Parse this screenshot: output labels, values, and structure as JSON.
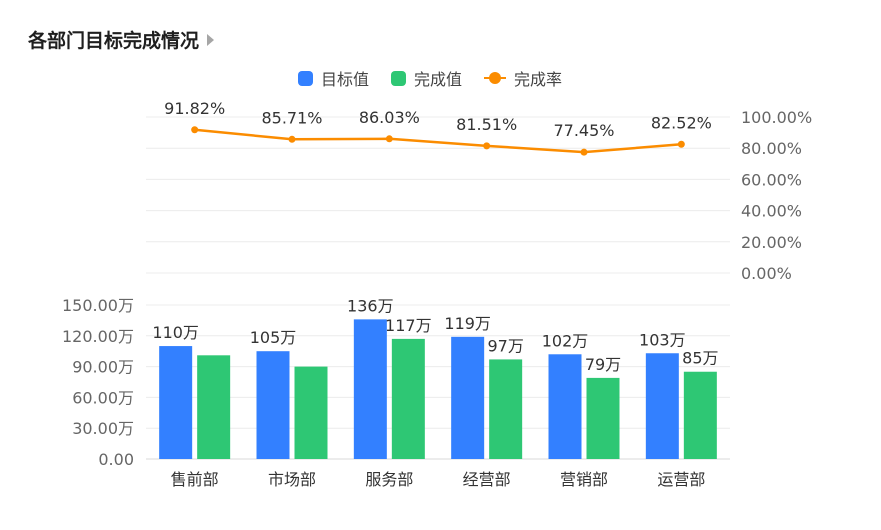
{
  "header": {
    "title": "各部门目标完成情况",
    "arrow_icon": "caret-right-icon"
  },
  "legend": {
    "items": [
      {
        "label": "目标值",
        "color": "#3380ff",
        "kind": "bar"
      },
      {
        "label": "完成值",
        "color": "#2ec774",
        "kind": "bar"
      },
      {
        "label": "完成率",
        "color": "#fb8c00",
        "kind": "line"
      }
    ]
  },
  "chart_data": {
    "type": "bar",
    "categories": [
      "售前部",
      "市场部",
      "服务部",
      "经营部",
      "营销部",
      "运营部"
    ],
    "series": [
      {
        "name": "目标值",
        "type": "bar",
        "color": "#3380ff",
        "values": [
          110,
          105,
          136,
          119,
          102,
          103
        ],
        "labels": [
          "110万",
          "105万",
          "136万",
          "119万",
          "102万",
          "103万"
        ]
      },
      {
        "name": "完成值",
        "type": "bar",
        "color": "#2ec774",
        "values": [
          101,
          90,
          117,
          97,
          79,
          85
        ],
        "labels": [
          "",
          "",
          "117万",
          "97万",
          "79万",
          "85万"
        ]
      },
      {
        "name": "完成率",
        "type": "line",
        "color": "#fb8c00",
        "values": [
          91.82,
          85.71,
          86.03,
          81.51,
          77.45,
          82.52
        ],
        "labels": [
          "91.82%",
          "85.71%",
          "86.03%",
          "81.51%",
          "77.45%",
          "82.52%"
        ]
      }
    ],
    "bar_axis": {
      "ylim": [
        0,
        150
      ],
      "ticks": [
        0,
        30,
        60,
        90,
        120,
        150
      ],
      "tick_labels": [
        "0.00",
        "30.00万",
        "60.00万",
        "90.00万",
        "120.00万",
        "150.00万"
      ]
    },
    "line_axis": {
      "ylim": [
        0,
        100
      ],
      "ticks": [
        0,
        20,
        40,
        60,
        80,
        100
      ],
      "tick_labels": [
        "0.00%",
        "20.00%",
        "40.00%",
        "60.00%",
        "80.00%",
        "100.00%"
      ]
    },
    "grid": true,
    "legend_position": "top-center"
  }
}
